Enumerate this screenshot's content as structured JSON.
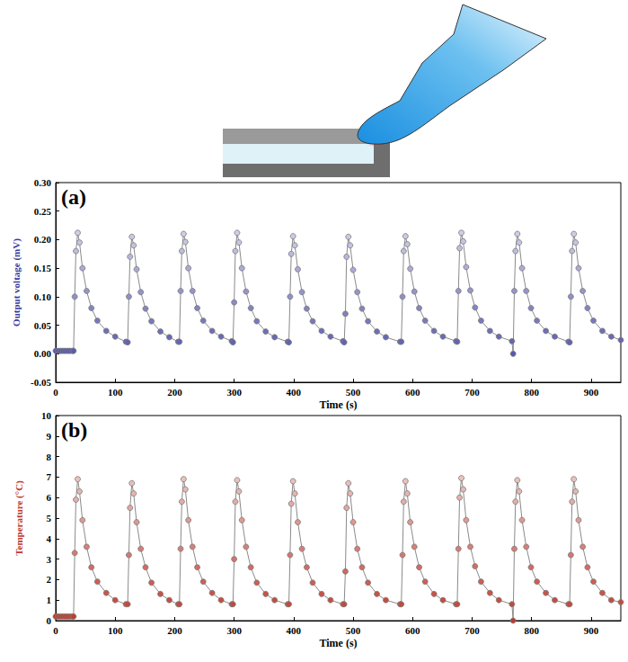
{
  "chart_data": [
    {
      "type": "line",
      "panel_label": "(a)",
      "x_label": "Time (s)",
      "y_label": "Output voltage (mV)",
      "color": "#3c3ca0",
      "marker": "circle",
      "grid": false,
      "xlim": [
        0,
        950
      ],
      "xticks": [
        0,
        100,
        200,
        300,
        400,
        500,
        600,
        700,
        800,
        900
      ],
      "ylim": [
        -0.05,
        0.3
      ],
      "yticks": [
        -0.05,
        {
          "value": 0,
          "label": "0.00"
        },
        0.05,
        {
          "value": 0.1,
          "label": "0.10"
        },
        0.15,
        {
          "value": 0.2,
          "label": "0.20"
        },
        0.25,
        {
          "value": 0.3,
          "label": "0.30"
        }
      ],
      "x": [
        0,
        4,
        8,
        12,
        16,
        20,
        24,
        28,
        30,
        32,
        34,
        37,
        40,
        45,
        52,
        60,
        70,
        85,
        100,
        118,
        121,
        123,
        125,
        128,
        131,
        136,
        143,
        151,
        161,
        176,
        191,
        206,
        208,
        210,
        212,
        215,
        218,
        223,
        230,
        238,
        248,
        263,
        278,
        296,
        298,
        300,
        302,
        305,
        308,
        313,
        320,
        328,
        338,
        353,
        368,
        390,
        392,
        394,
        396,
        399,
        402,
        407,
        414,
        422,
        432,
        447,
        462,
        483,
        485,
        487,
        489,
        492,
        495,
        500,
        507,
        515,
        525,
        540,
        555,
        579,
        581,
        583,
        585,
        588,
        591,
        596,
        603,
        611,
        621,
        636,
        651,
        673,
        675,
        677,
        679,
        682,
        685,
        690,
        697,
        705,
        715,
        730,
        745,
        767,
        769,
        771,
        773,
        776,
        779,
        784,
        791,
        799,
        809,
        824,
        839,
        862,
        864,
        866,
        868,
        871,
        874,
        879,
        886,
        894,
        904,
        919,
        934,
        950
      ],
      "values": [
        0.005,
        0.005,
        0.005,
        0.005,
        0.005,
        0.005,
        0.005,
        0.005,
        0.005,
        0.1,
        0.18,
        0.212,
        0.195,
        0.15,
        0.11,
        0.08,
        0.058,
        0.04,
        0.03,
        0.021,
        0.02,
        0.1,
        0.17,
        0.205,
        0.19,
        0.148,
        0.108,
        0.079,
        0.057,
        0.039,
        0.029,
        0.021,
        0.021,
        0.11,
        0.18,
        0.21,
        0.196,
        0.15,
        0.11,
        0.08,
        0.058,
        0.04,
        0.03,
        0.022,
        0.02,
        0.09,
        0.18,
        0.212,
        0.195,
        0.15,
        0.109,
        0.08,
        0.057,
        0.039,
        0.029,
        0.021,
        0.02,
        0.1,
        0.175,
        0.206,
        0.19,
        0.148,
        0.108,
        0.079,
        0.057,
        0.04,
        0.03,
        0.022,
        0.02,
        0.07,
        0.17,
        0.205,
        0.19,
        0.147,
        0.108,
        0.079,
        0.057,
        0.039,
        0.029,
        0.021,
        0.021,
        0.1,
        0.18,
        0.206,
        0.192,
        0.149,
        0.109,
        0.08,
        0.058,
        0.04,
        0.03,
        0.022,
        0.021,
        0.11,
        0.185,
        0.212,
        0.197,
        0.152,
        0.111,
        0.081,
        0.058,
        0.04,
        0.03,
        0.022,
        0.0,
        0.11,
        0.18,
        0.21,
        0.195,
        0.15,
        0.11,
        0.08,
        0.058,
        0.04,
        0.03,
        0.021,
        0.02,
        0.1,
        0.18,
        0.21,
        0.195,
        0.15,
        0.11,
        0.08,
        0.058,
        0.04,
        0.03,
        0.024
      ]
    },
    {
      "type": "line",
      "panel_label": "(b)",
      "x_label": "Time (s)",
      "y_label": "Temperature (°C)",
      "color": "#c0392b",
      "marker": "circle",
      "grid": false,
      "xlim": [
        0,
        950
      ],
      "xticks": [
        0,
        100,
        200,
        300,
        400,
        500,
        600,
        700,
        800,
        900
      ],
      "ylim": [
        0,
        10
      ],
      "yticks": [
        0,
        1,
        2,
        3,
        4,
        5,
        6,
        7,
        8,
        9,
        10
      ],
      "x": [
        0,
        4,
        8,
        12,
        16,
        20,
        24,
        28,
        30,
        32,
        34,
        37,
        40,
        45,
        52,
        60,
        70,
        85,
        100,
        118,
        121,
        123,
        125,
        128,
        131,
        136,
        143,
        151,
        161,
        176,
        191,
        206,
        208,
        210,
        212,
        215,
        218,
        223,
        230,
        238,
        248,
        263,
        278,
        296,
        298,
        300,
        302,
        305,
        308,
        313,
        320,
        328,
        338,
        353,
        368,
        390,
        392,
        394,
        396,
        399,
        402,
        407,
        414,
        422,
        432,
        447,
        462,
        483,
        485,
        487,
        489,
        492,
        495,
        500,
        507,
        515,
        525,
        540,
        555,
        579,
        581,
        583,
        585,
        588,
        591,
        596,
        603,
        611,
        621,
        636,
        651,
        673,
        675,
        677,
        679,
        682,
        685,
        690,
        697,
        705,
        715,
        730,
        745,
        767,
        769,
        771,
        773,
        776,
        779,
        784,
        791,
        799,
        809,
        824,
        839,
        862,
        864,
        866,
        868,
        871,
        874,
        879,
        886,
        894,
        904,
        919,
        934,
        950
      ],
      "values": [
        0.2,
        0.2,
        0.2,
        0.2,
        0.2,
        0.2,
        0.2,
        0.2,
        0.2,
        3.3,
        5.9,
        6.9,
        6.3,
        4.9,
        3.6,
        2.6,
        1.9,
        1.35,
        1.0,
        0.8,
        0.8,
        3.2,
        5.5,
        6.7,
        6.2,
        4.8,
        3.5,
        2.6,
        1.85,
        1.3,
        1.0,
        0.8,
        0.8,
        3.5,
        5.8,
        6.9,
        6.4,
        4.9,
        3.6,
        2.6,
        1.9,
        1.35,
        1.0,
        0.8,
        0.8,
        3.0,
        5.8,
        6.85,
        6.3,
        4.9,
        3.6,
        2.6,
        1.85,
        1.3,
        1.0,
        0.8,
        0.8,
        3.2,
        5.7,
        6.8,
        6.2,
        4.8,
        3.5,
        2.6,
        1.85,
        1.3,
        1.0,
        0.8,
        0.8,
        2.4,
        5.5,
        6.7,
        6.2,
        4.8,
        3.5,
        2.6,
        1.85,
        1.3,
        1.0,
        0.8,
        0.8,
        3.2,
        5.8,
        6.8,
        6.2,
        4.8,
        3.6,
        2.6,
        1.9,
        1.3,
        1.0,
        0.8,
        0.8,
        3.5,
        6.0,
        6.95,
        6.4,
        4.9,
        3.6,
        2.65,
        1.9,
        1.35,
        1.0,
        0.8,
        0.0,
        3.5,
        5.8,
        6.85,
        6.3,
        4.9,
        3.6,
        2.6,
        1.9,
        1.35,
        1.0,
        0.8,
        0.8,
        3.2,
        5.8,
        6.9,
        6.3,
        4.9,
        3.6,
        2.6,
        1.9,
        1.35,
        1.0,
        0.9
      ]
    }
  ]
}
